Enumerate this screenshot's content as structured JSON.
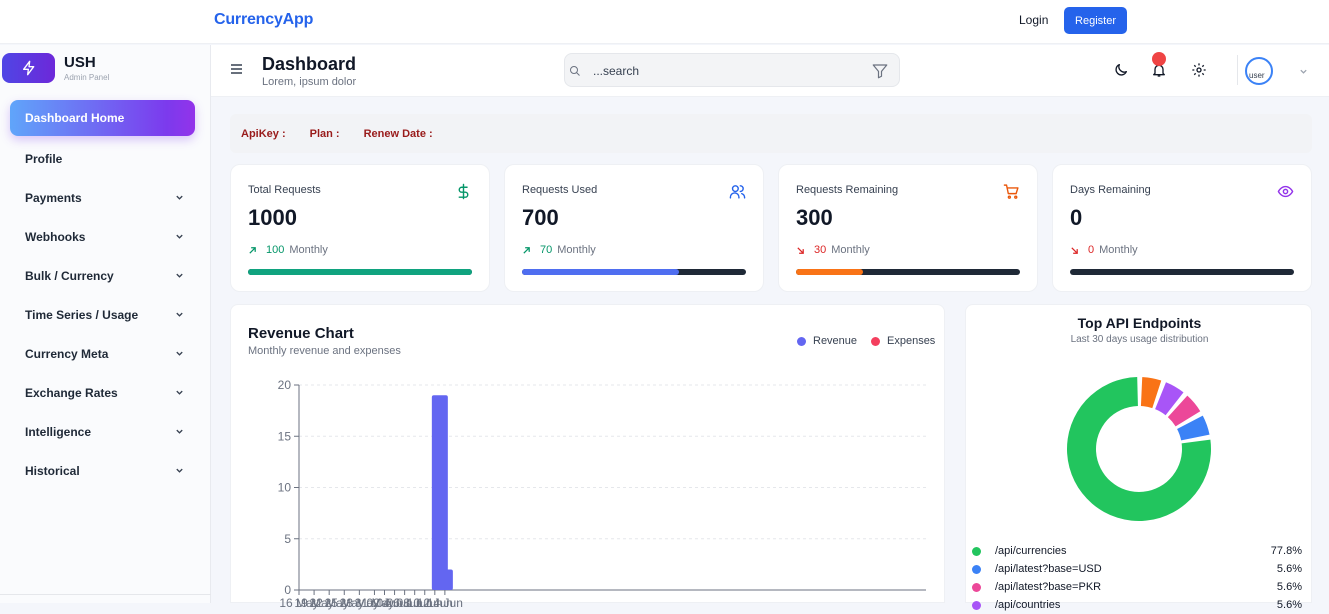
{
  "topbar": {
    "brand": "CurrencyApp",
    "login": "Login",
    "register": "Register"
  },
  "sidebar": {
    "org_name": "USH",
    "org_subtitle": "Admin Panel",
    "items": [
      {
        "label": "Dashboard Home",
        "active": true,
        "expandable": false
      },
      {
        "label": "Profile",
        "expandable": false
      },
      {
        "label": "Payments",
        "expandable": true
      },
      {
        "label": "Webhooks",
        "expandable": true
      },
      {
        "label": "Bulk / Currency",
        "expandable": true
      },
      {
        "label": "Time Series / Usage",
        "expandable": true
      },
      {
        "label": "Currency Meta",
        "expandable": true
      },
      {
        "label": "Exchange Rates",
        "expandable": true
      },
      {
        "label": "Intelligence",
        "expandable": true
      },
      {
        "label": "Historical",
        "expandable": true
      }
    ]
  },
  "header": {
    "title": "Dashboard",
    "subtitle": "Lorem, ipsum dolor",
    "search_placeholder": "...search",
    "avatar_alt": "user"
  },
  "api_info": {
    "api_key_label": "ApiKey :",
    "plan_label": "Plan :",
    "renew_label": "Renew Date :"
  },
  "stats": [
    {
      "label": "Total Requests",
      "value": "1000",
      "trend": "100",
      "direction": "up",
      "period": "Monthly",
      "icon": "dollar-icon",
      "accent": "#059669",
      "progress": 1.0,
      "bar_color": "#10a37f"
    },
    {
      "label": "Requests Used",
      "value": "700",
      "trend": "70",
      "direction": "up",
      "period": "Monthly",
      "icon": "users-icon",
      "accent": "#2563eb",
      "progress": 0.7,
      "bar_color": "#4f6ef0"
    },
    {
      "label": "Requests Remaining",
      "value": "300",
      "trend": "30",
      "direction": "down",
      "period": "Monthly",
      "icon": "cart-icon",
      "accent": "#ea580c",
      "progress": 0.3,
      "bar_color": "#f97316"
    },
    {
      "label": "Days Remaining",
      "value": "0",
      "trend": "0",
      "direction": "down",
      "period": "Monthly",
      "icon": "eye-icon",
      "accent": "#9333ea",
      "progress": 0,
      "bar_color": "#1f2937"
    }
  ],
  "colors": {
    "up": "#059669",
    "down": "#dc2626"
  },
  "revenue_card": {
    "title": "Revenue Chart",
    "subtitle": "Monthly revenue and expenses",
    "legend": [
      {
        "name": "Revenue",
        "color": "#6366f1"
      },
      {
        "name": "Expenses",
        "color": "#f43f5e"
      }
    ]
  },
  "chart_data": [
    {
      "type": "bar",
      "title": "Revenue Chart",
      "categories": [
        "16 May",
        "19 May",
        "22 May",
        "25 May",
        "28 May",
        "31 May",
        "02 Jun",
        "04 Jun",
        "06 Jun",
        "08 Jun",
        "10 Jun",
        "12 Jun",
        "14 Jun"
      ],
      "x_start": "2024-05-16",
      "bars": [
        {
          "date": "13 Jun",
          "value": 19
        },
        {
          "date": "14 Jun",
          "value": 2
        }
      ],
      "series": [
        {
          "name": "Revenue",
          "color": "#6366f1"
        },
        {
          "name": "Expenses",
          "color": "#f43f5e"
        }
      ],
      "yticks": [
        0,
        5,
        10,
        15,
        20
      ],
      "ylim": [
        0,
        20
      ],
      "grid": true,
      "legend_position": "top-right"
    },
    {
      "type": "pie",
      "title": "Top API Endpoints",
      "subtitle": "Last 30 days usage distribution",
      "slices": [
        {
          "label": "/api/currencies",
          "value": 77.8,
          "display": "77.8%",
          "color": "#22c55e"
        },
        {
          "label": "/api/latest?base=USD",
          "value": 5.6,
          "display": "5.6%",
          "color": "#3b82f6"
        },
        {
          "label": "/api/latest?base=PKR",
          "value": 5.6,
          "display": "5.6%",
          "color": "#ec4899"
        },
        {
          "label": "/api/countries",
          "value": 5.6,
          "display": "5.6%",
          "color": "#a855f7"
        },
        {
          "label": "",
          "value": 5.4,
          "color": "#f97316"
        }
      ]
    }
  ]
}
